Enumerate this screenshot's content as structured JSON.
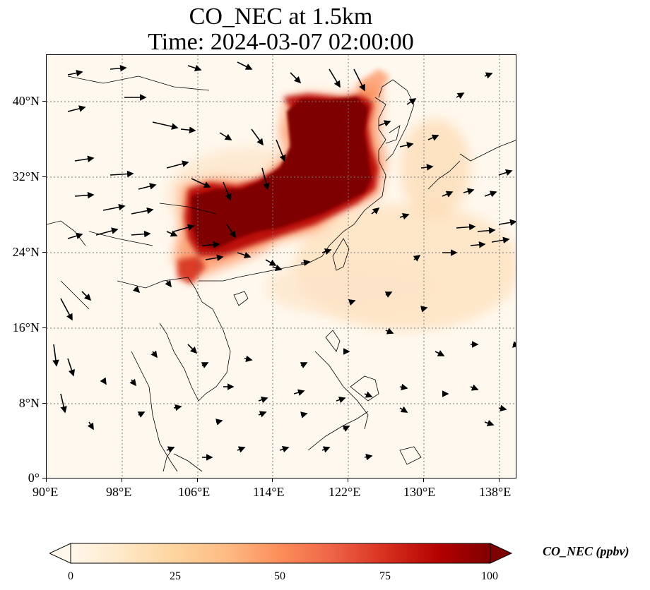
{
  "title": {
    "line1": "CO_NEC at 1.5km",
    "line2": "Time: 2024-03-07 02:00:00"
  },
  "map": {
    "lon_range": [
      90,
      139
    ],
    "lat_range": [
      0,
      44
    ],
    "lon_ticks": [
      "90°E",
      "98°E",
      "106°E",
      "114°E",
      "122°E",
      "130°E",
      "138°E"
    ],
    "lat_ticks": [
      "0°",
      "8°N",
      "16°N",
      "24°N",
      "32°N",
      "40°N"
    ],
    "gridlines": true,
    "field": "CO_NEC concentration (shaded)",
    "vectors": "wind arrows"
  },
  "colorbar": {
    "label": "CO_NEC (ppbv)",
    "ticks": [
      "0",
      "25",
      "50",
      "75",
      "100"
    ],
    "min": 0,
    "max": 100,
    "extend": "both",
    "colormap": [
      "#fff7ec",
      "#fee8c8",
      "#fdd49e",
      "#fdbb84",
      "#fc8d59",
      "#ef6548",
      "#d7301f",
      "#b30000",
      "#7f0000"
    ]
  }
}
